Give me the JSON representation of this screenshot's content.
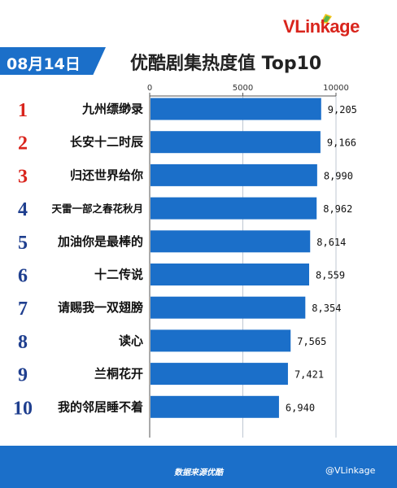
{
  "header": {
    "date": "08月14日",
    "title": "优酷剧集热度值 Top10",
    "logo_v": "V",
    "logo_rest": "Linkage"
  },
  "chart_data": {
    "type": "bar",
    "orientation": "horizontal",
    "title": "优酷剧集热度值 Top10",
    "xlim": [
      0,
      10000
    ],
    "x_ticks": [
      "0",
      "5000",
      "10000"
    ],
    "ranks": [
      "1",
      "2",
      "3",
      "4",
      "5",
      "6",
      "7",
      "8",
      "9",
      "10"
    ],
    "categories": [
      "九州缥缈录",
      "长安十二时辰",
      "归还世界给你",
      "天雷一部之春花秋月",
      "加油你是最棒的",
      "十二传说",
      "请赐我一双翅膀",
      "读心",
      "兰桐花开",
      "我的邻居睡不着"
    ],
    "values": [
      9205,
      9166,
      8990,
      8962,
      8614,
      8559,
      8354,
      7565,
      7421,
      6940
    ],
    "value_labels": [
      "9,205",
      "9,166",
      "8,990",
      "8,962",
      "8,614",
      "8,559",
      "8,354",
      "7,565",
      "7,421",
      "6,940"
    ],
    "grid": true,
    "legend": "none",
    "colors": {
      "bar": "#1b6fc9",
      "rank_top3": "#d9251d",
      "rank_other": "#1f3f8f"
    }
  },
  "footer": {
    "source": "数据来源优酷",
    "watermark": "@VLinkage"
  }
}
